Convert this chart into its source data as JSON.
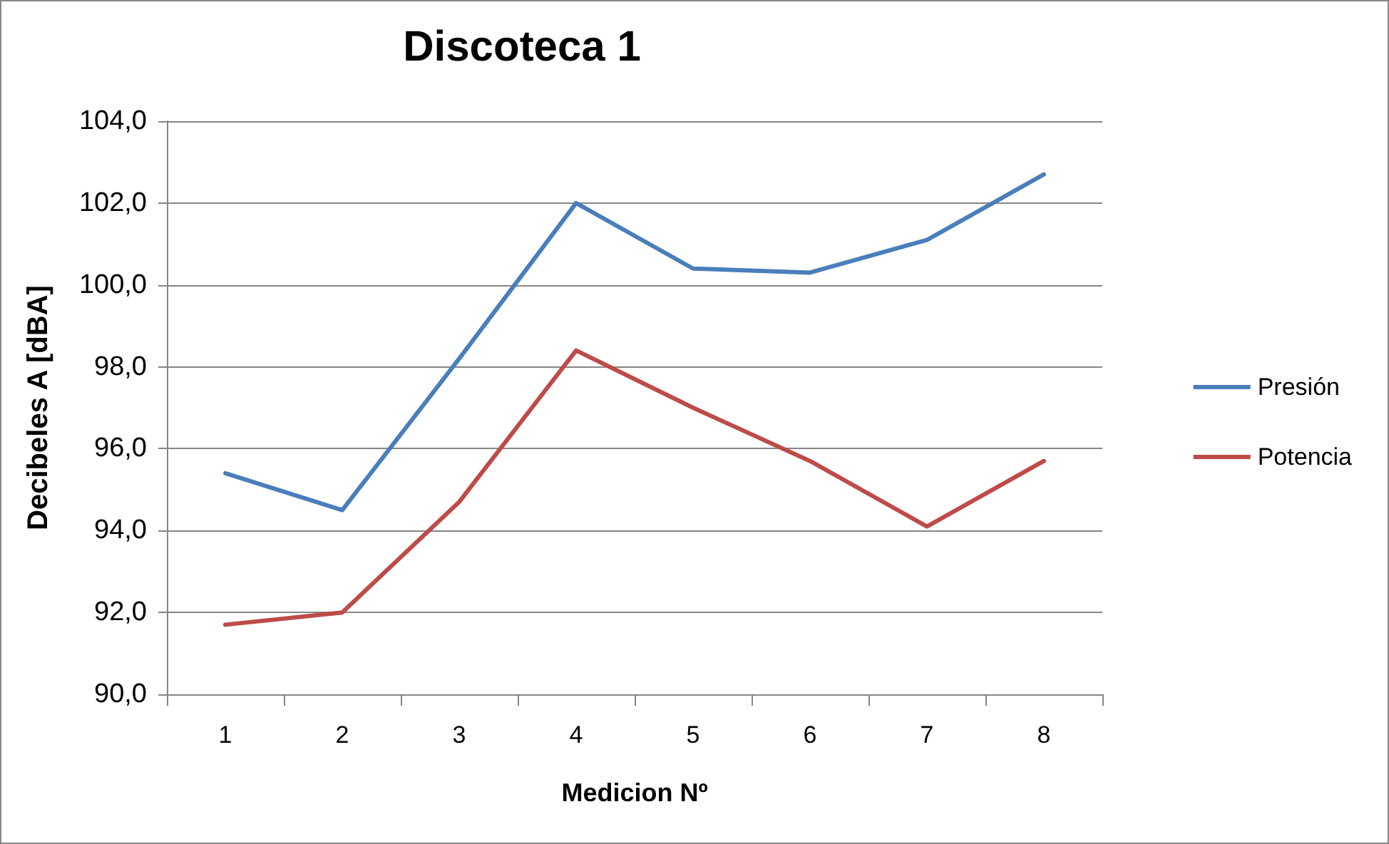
{
  "chart_data": {
    "type": "line",
    "title": "Discoteca 1",
    "xlabel": "Medicion Nº",
    "ylabel": "Decibeles A [dBA]",
    "categories": [
      "1",
      "2",
      "3",
      "4",
      "5",
      "6",
      "7",
      "8"
    ],
    "series": [
      {
        "name": "Presión",
        "color": "#4a7ebb",
        "values": [
          95.4,
          94.5,
          98.2,
          102.0,
          100.4,
          100.3,
          101.1,
          102.7
        ]
      },
      {
        "name": "Potencia",
        "color": "#be4b48",
        "values": [
          91.7,
          92.0,
          94.7,
          98.4,
          97.0,
          95.7,
          94.1,
          95.7
        ]
      }
    ],
    "ylim": [
      90,
      104
    ],
    "yticks": [
      {
        "value": 90,
        "label": "90,0"
      },
      {
        "value": 92,
        "label": "92,0"
      },
      {
        "value": 94,
        "label": "94,0"
      },
      {
        "value": 96,
        "label": "96,0"
      },
      {
        "value": 98,
        "label": "98,0"
      },
      {
        "value": 100,
        "label": "100,0"
      },
      {
        "value": 102,
        "label": "102,0"
      },
      {
        "value": 104,
        "label": "104,0"
      }
    ],
    "grid": "y",
    "legend": "right",
    "marker": "none",
    "line_style": "solid"
  }
}
